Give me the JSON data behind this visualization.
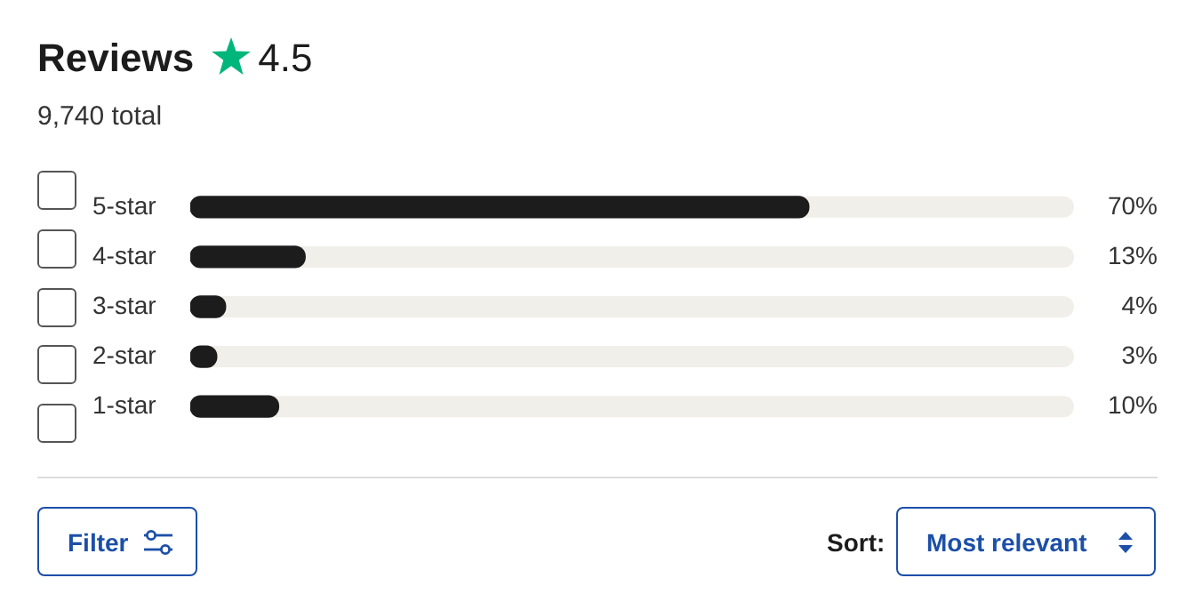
{
  "chart_data": {
    "type": "bar",
    "orientation": "horizontal",
    "title": "Reviews",
    "subtitle": "9,740 total",
    "annotations": [
      "4.5",
      "Filter",
      "Sort:",
      "Most relevant"
    ],
    "categories": [
      "5-star",
      "4-star",
      "3-star",
      "2-star",
      "1-star"
    ],
    "values": [
      70,
      13,
      4,
      3,
      10
    ],
    "value_labels": [
      "70%",
      "13%",
      "4%",
      "3%",
      "10%"
    ],
    "color": "#1c1c1c",
    "xlim": [
      0,
      100
    ],
    "tick_labels": "y"
  }
}
